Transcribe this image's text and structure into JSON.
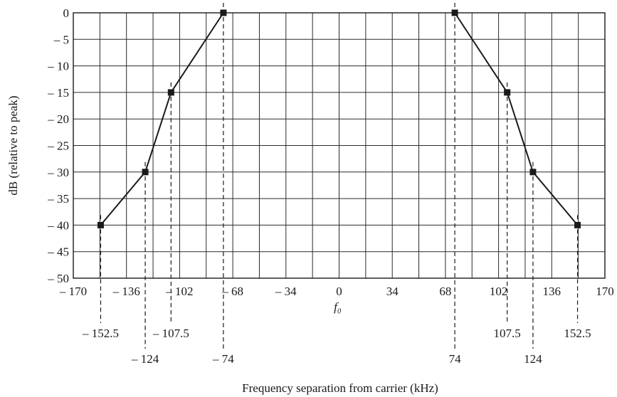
{
  "chart_data": {
    "type": "line",
    "xlabel": "Frequency separation from carrier (kHz)",
    "ylabel": "dB (relative to peak)",
    "xlim": [
      -170,
      170
    ],
    "ylim": [
      -50,
      0
    ],
    "x_ticks": [
      {
        "v": -170,
        "label": "– 170"
      },
      {
        "v": -136,
        "label": "– 136"
      },
      {
        "v": -102,
        "label": "– 102"
      },
      {
        "v": -68,
        "label": "– 68"
      },
      {
        "v": -34,
        "label": "– 34"
      },
      {
        "v": 0,
        "label": "0"
      },
      {
        "v": 34,
        "label": "34"
      },
      {
        "v": 68,
        "label": "68"
      },
      {
        "v": 102,
        "label": "102"
      },
      {
        "v": 136,
        "label": "136"
      },
      {
        "v": 170,
        "label": "170"
      }
    ],
    "y_ticks": [
      {
        "v": 0,
        "label": "0"
      },
      {
        "v": -5,
        "label": "– 5"
      },
      {
        "v": -10,
        "label": "– 10"
      },
      {
        "v": -15,
        "label": "– 15"
      },
      {
        "v": -20,
        "label": "– 20"
      },
      {
        "v": -25,
        "label": "– 25"
      },
      {
        "v": -30,
        "label": "– 30"
      },
      {
        "v": -35,
        "label": "– 35"
      },
      {
        "v": -40,
        "label": "– 40"
      },
      {
        "v": -45,
        "label": "– 45"
      },
      {
        "v": -50,
        "label": "– 50"
      }
    ],
    "center_label": "f₀",
    "grid": true,
    "series": [
      {
        "x": [
          -152.5,
          -124,
          -107.5,
          -74
        ],
        "y": [
          -40,
          -30,
          -15,
          0
        ]
      },
      {
        "x": [
          74,
          107.5,
          124,
          152.5
        ],
        "y": [
          0,
          -15,
          -30,
          -40
        ]
      }
    ],
    "drop_lines": [
      {
        "x": -152.5,
        "y": -40,
        "label": "– 152.5",
        "row": 1
      },
      {
        "x": -124,
        "y": -30,
        "label": "– 124",
        "row": 2
      },
      {
        "x": -107.5,
        "y": -15,
        "label": "– 107.5",
        "row": 1
      },
      {
        "x": -74,
        "y": 0,
        "label": "– 74",
        "row": 2
      },
      {
        "x": 74,
        "y": 0,
        "label": "74",
        "row": 2
      },
      {
        "x": 107.5,
        "y": -15,
        "label": "107.5",
        "row": 1
      },
      {
        "x": 124,
        "y": -30,
        "label": "124",
        "row": 2
      },
      {
        "x": 152.5,
        "y": -40,
        "label": "152.5",
        "row": 1
      }
    ]
  }
}
